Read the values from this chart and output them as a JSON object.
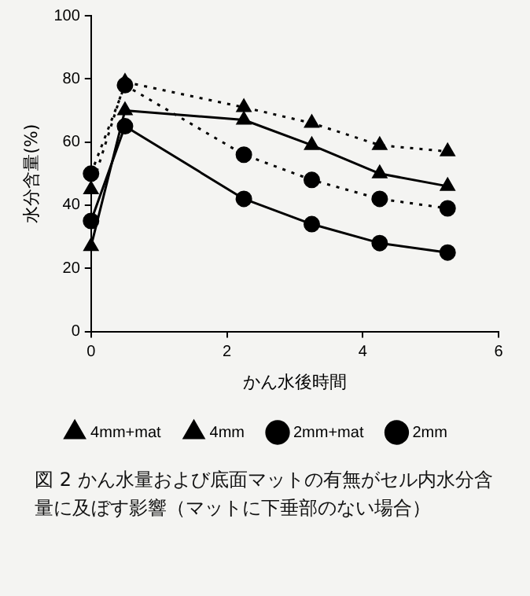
{
  "chart_data": {
    "type": "line",
    "xlabel": "かん水後時間",
    "ylabel": "水分含量(%)",
    "x": [
      0,
      0.5,
      2.25,
      3.25,
      4.25,
      5.25
    ],
    "xlim": [
      0,
      6
    ],
    "xticks": [
      0,
      2,
      4,
      6
    ],
    "ylim": [
      0,
      100
    ],
    "yticks": [
      0,
      20,
      40,
      60,
      80,
      100
    ],
    "grid": false,
    "legend": "bottom",
    "series": [
      {
        "name": "2mm",
        "color": "#000000",
        "marker": "circle",
        "line_style": "solid",
        "values": [
          35,
          65,
          42,
          34,
          28,
          25
        ]
      },
      {
        "name": "2mm+mat",
        "color": "#000000",
        "marker": "circle",
        "line_style": "dotted",
        "values": [
          50,
          78,
          56,
          48,
          42,
          39
        ]
      },
      {
        "name": "4mm",
        "color": "#000000",
        "marker": "triangle",
        "line_style": "solid",
        "values": [
          27,
          70,
          67,
          59,
          50,
          46
        ]
      },
      {
        "name": "4mm+mat",
        "color": "#000000",
        "marker": "triangle",
        "line_style": "dotted",
        "values": [
          45,
          79,
          71,
          66,
          59,
          57
        ]
      }
    ],
    "annotations": [
      "図 2 かん水量および底面マットの有無がセル内水分含量に及ぼす影響（マットに下垂部のない場合）"
    ]
  }
}
